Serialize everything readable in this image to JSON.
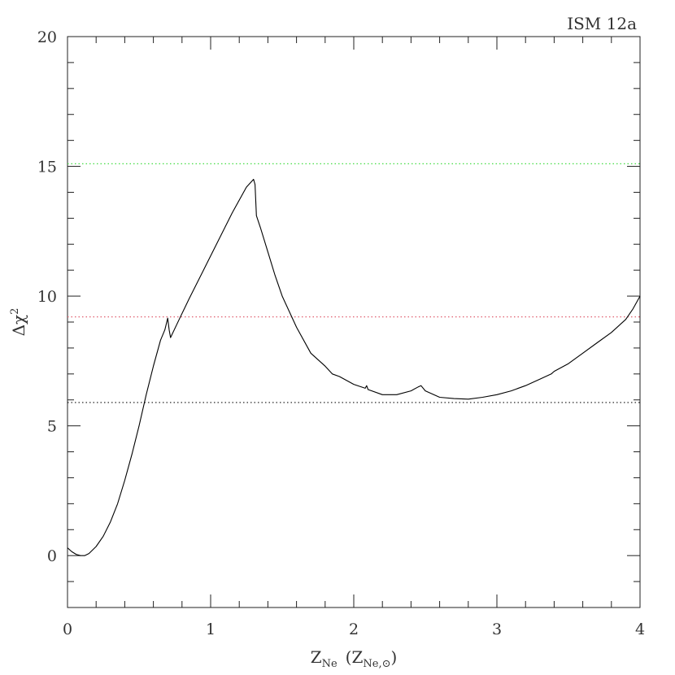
{
  "chart_data": {
    "type": "line",
    "title": "ISM 12a",
    "xlabel": {
      "main": "Z",
      "sub": "Ne",
      "paren_main": "Z",
      "paren_sub": "Ne,⊙"
    },
    "ylabel": {
      "main": "Δχ",
      "sup": "2"
    },
    "xlim": [
      0,
      4
    ],
    "ylim": [
      -2,
      20
    ],
    "x_ticks": [
      0,
      1,
      2,
      3,
      4
    ],
    "x_tick_labels": [
      "0",
      "1",
      "2",
      "3",
      "4"
    ],
    "y_ticks": [
      0,
      5,
      10,
      15,
      20
    ],
    "y_tick_labels": [
      "0",
      "5",
      "10",
      "15",
      "20"
    ],
    "grid": false,
    "reference_lines": [
      {
        "y": 15.1,
        "color": "#44dd44",
        "style": "dotted"
      },
      {
        "y": 9.2,
        "color": "#e06070",
        "style": "dotted"
      },
      {
        "y": 5.9,
        "color": "#111111",
        "style": "dotted"
      }
    ],
    "series": [
      {
        "color": "#000000",
        "x": [
          0,
          0.03,
          0.06,
          0.09,
          0.12,
          0.15,
          0.2,
          0.25,
          0.3,
          0.35,
          0.4,
          0.45,
          0.5,
          0.55,
          0.6,
          0.65,
          0.68,
          0.7,
          0.71,
          0.72,
          0.78,
          0.85,
          0.95,
          1.05,
          1.15,
          1.25,
          1.3,
          1.31,
          1.32,
          1.35,
          1.4,
          1.45,
          1.5,
          1.6,
          1.7,
          1.8,
          1.85,
          1.9,
          2.0,
          2.08,
          2.09,
          2.1,
          2.2,
          2.3,
          2.4,
          2.45,
          2.47,
          2.5,
          2.6,
          2.7,
          2.8,
          2.9,
          3.0,
          3.1,
          3.2,
          3.3,
          3.38,
          3.4,
          3.5,
          3.6,
          3.7,
          3.8,
          3.9,
          3.95,
          4.0
        ],
        "y": [
          0.3,
          0.15,
          0.05,
          0.0,
          0.0,
          0.08,
          0.35,
          0.75,
          1.3,
          2.0,
          2.9,
          3.9,
          5.0,
          6.2,
          7.3,
          8.3,
          8.7,
          9.15,
          8.7,
          8.4,
          9.1,
          9.9,
          11.0,
          12.1,
          13.2,
          14.2,
          14.5,
          14.3,
          13.1,
          12.6,
          11.7,
          10.8,
          10.0,
          8.8,
          7.8,
          7.3,
          7.0,
          6.9,
          6.6,
          6.45,
          6.55,
          6.4,
          6.2,
          6.2,
          6.35,
          6.5,
          6.55,
          6.35,
          6.1,
          6.05,
          6.03,
          6.1,
          6.2,
          6.35,
          6.55,
          6.8,
          7.0,
          7.1,
          7.4,
          7.8,
          8.2,
          8.6,
          9.1,
          9.5,
          10.0
        ]
      }
    ]
  }
}
